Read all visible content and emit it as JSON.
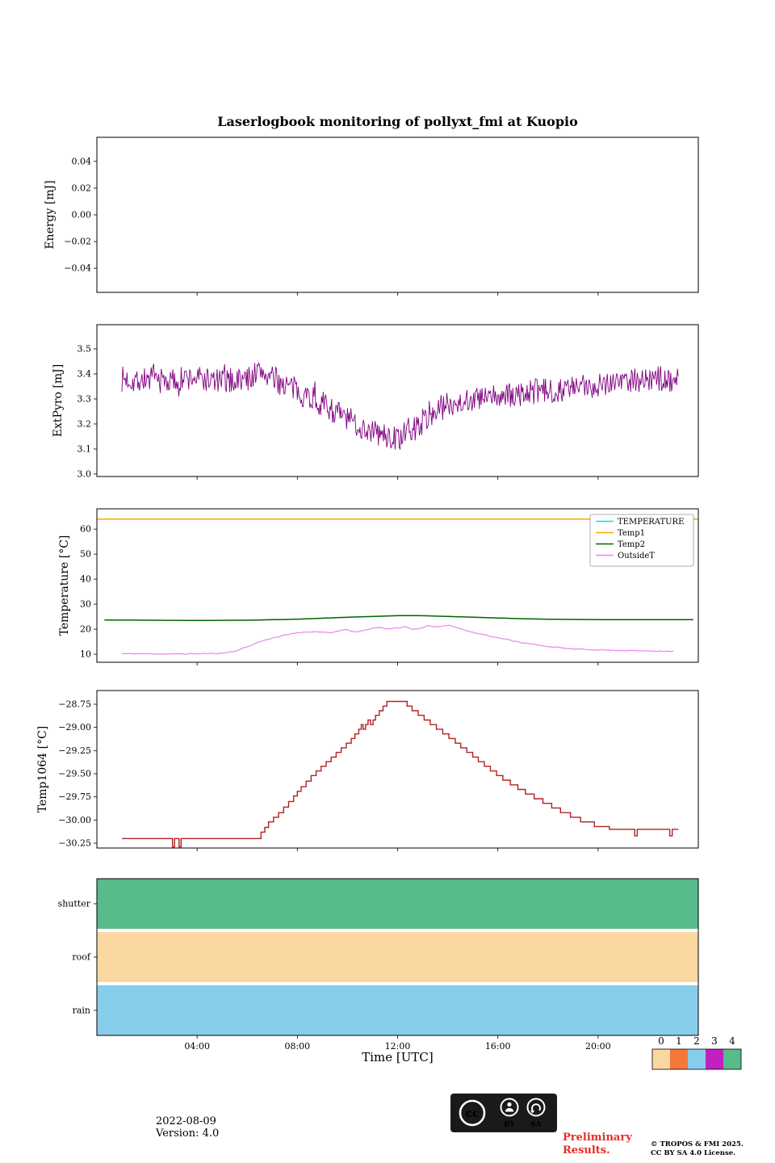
{
  "title": "Laserlogbook monitoring of pollyxt_fmi at Kuopio",
  "footer": {
    "date": "2022-08-09",
    "version": "Version: 4.0",
    "preliminary_line1": "Preliminary",
    "preliminary_line2": "Results.",
    "preliminary_color": "#e62e25",
    "copyright_line1": "© TROPOS & FMI 2025.",
    "copyright_line2": "CC BY SA 4.0 License.",
    "cc_logo_text": "cc",
    "cc_by_label": "BY",
    "cc_sa_label": "SA"
  },
  "colorbar": {
    "tick_labels": [
      "0",
      "1",
      "2",
      "3",
      "4"
    ],
    "colors": [
      "#fbd7a2",
      "#f4773b",
      "#87ceeb",
      "#c31fc3",
      "#57bb8a"
    ]
  },
  "chart_data": [
    {
      "id": "energy",
      "type": "line",
      "ylabel": "Energy [mJ]",
      "ylim": [
        -0.058,
        0.058
      ],
      "yticks": [
        0.04,
        0.02,
        0.0,
        -0.02,
        -0.04
      ],
      "ytick_labels": [
        "0.04",
        "0.02",
        "0.00",
        "−0.02",
        "−0.04"
      ],
      "xlim": [
        0,
        24
      ],
      "xticks": [
        4,
        8,
        12,
        16,
        20
      ],
      "series": []
    },
    {
      "id": "extpyro",
      "type": "line",
      "ylabel": "ExtPyro [mJ]",
      "ylim": [
        2.99,
        3.597
      ],
      "yticks": [
        3.0,
        3.1,
        3.2,
        3.3,
        3.4,
        3.5
      ],
      "ytick_labels": [
        "3.0",
        "3.1",
        "3.2",
        "3.3",
        "3.4",
        "3.5"
      ],
      "xlim": [
        0,
        24
      ],
      "xticks": [
        4,
        8,
        12,
        16,
        20
      ],
      "series": [
        {
          "name": "ExtPyro",
          "color": "#800080",
          "style": "line",
          "lw": 0.9,
          "pph": 30,
          "noise": 0.052,
          "spike_p": 0.02,
          "spike_mult": 1.9,
          "seed": 7,
          "trange": [
            1,
            23.2
          ],
          "anchors": [
            [
              1,
              3.38
            ],
            [
              1.5,
              3.375
            ],
            [
              2,
              3.38
            ],
            [
              2.5,
              3.375
            ],
            [
              3,
              3.37
            ],
            [
              3.5,
              3.38
            ],
            [
              4,
              3.385
            ],
            [
              4.5,
              3.375
            ],
            [
              5,
              3.37
            ],
            [
              5.5,
              3.375
            ],
            [
              6,
              3.38
            ],
            [
              6.3,
              3.4
            ],
            [
              6.6,
              3.41
            ],
            [
              7,
              3.38
            ],
            [
              7.5,
              3.36
            ],
            [
              8,
              3.33
            ],
            [
              8.5,
              3.31
            ],
            [
              9,
              3.28
            ],
            [
              9.5,
              3.25
            ],
            [
              10,
              3.22
            ],
            [
              10.5,
              3.19
            ],
            [
              11,
              3.17
            ],
            [
              11.5,
              3.15
            ],
            [
              12,
              3.14
            ],
            [
              12.5,
              3.17
            ],
            [
              13,
              3.21
            ],
            [
              13.5,
              3.25
            ],
            [
              14,
              3.28
            ],
            [
              14.5,
              3.29
            ],
            [
              15,
              3.3
            ],
            [
              15.5,
              3.3
            ],
            [
              16,
              3.31
            ],
            [
              16.5,
              3.31
            ],
            [
              17,
              3.32
            ],
            [
              17.5,
              3.33
            ],
            [
              18,
              3.33
            ],
            [
              18.5,
              3.34
            ],
            [
              19,
              3.34
            ],
            [
              19.5,
              3.35
            ],
            [
              20,
              3.36
            ],
            [
              20.5,
              3.37
            ],
            [
              21,
              3.375
            ],
            [
              21.5,
              3.38
            ],
            [
              22,
              3.375
            ],
            [
              22.5,
              3.38
            ],
            [
              23,
              3.38
            ],
            [
              23.2,
              3.38
            ]
          ]
        }
      ]
    },
    {
      "id": "temperature",
      "type": "line",
      "ylabel": "Temperature [°C]",
      "ylim": [
        6.8,
        68.1
      ],
      "yticks": [
        10,
        20,
        30,
        40,
        50,
        60
      ],
      "ytick_labels": [
        "10",
        "20",
        "30",
        "40",
        "50",
        "60"
      ],
      "xlim": [
        0,
        24
      ],
      "xticks": [
        4,
        8,
        12,
        16,
        20
      ],
      "legend": {
        "items": [
          {
            "label": "TEMPERATURE",
            "color": "#00e5e5"
          },
          {
            "label": "Temp1",
            "color": "#ffa500"
          },
          {
            "label": "Temp2",
            "color": "#006400"
          },
          {
            "label": "OutsideT",
            "color": "#ee82ee"
          }
        ]
      },
      "series": [
        {
          "name": "TEMPERATURE",
          "color": "#00e5e5",
          "style": "const",
          "value": 64,
          "trange": [
            0,
            24
          ],
          "lw": 1.5
        },
        {
          "name": "Temp1",
          "color": "#ffa500",
          "style": "const",
          "value": 64,
          "trange": [
            0,
            24
          ],
          "lw": 1.5
        },
        {
          "name": "Temp2",
          "color": "#006400",
          "style": "line",
          "lw": 1.5,
          "pph": 4,
          "trange": [
            0.3,
            23.9
          ],
          "anchors": [
            [
              0.3,
              23.7
            ],
            [
              2,
              23.6
            ],
            [
              4,
              23.5
            ],
            [
              6,
              23.6
            ],
            [
              7,
              23.8
            ],
            [
              8,
              24.0
            ],
            [
              9,
              24.4
            ],
            [
              10,
              24.8
            ],
            [
              11,
              25.1
            ],
            [
              12,
              25.4
            ],
            [
              13,
              25.4
            ],
            [
              14,
              25.1
            ],
            [
              15,
              24.8
            ],
            [
              16,
              24.5
            ],
            [
              17,
              24.2
            ],
            [
              18,
              24.0
            ],
            [
              19,
              23.9
            ],
            [
              20,
              23.85
            ],
            [
              21,
              23.8
            ],
            [
              22,
              23.8
            ],
            [
              23.9,
              23.8
            ]
          ]
        },
        {
          "name": "OutsideT",
          "color": "#ee82ee",
          "style": "line",
          "lw": 1.2,
          "pph": 12,
          "noise": 0.18,
          "seed": 11,
          "trange": [
            1,
            23.0
          ],
          "anchors": [
            [
              1,
              10.2
            ],
            [
              2,
              10.2
            ],
            [
              3,
              10.1
            ],
            [
              4,
              10.2
            ],
            [
              5,
              10.4
            ],
            [
              5.5,
              11.2
            ],
            [
              6,
              13.0
            ],
            [
              6.5,
              15.0
            ],
            [
              7,
              16.5
            ],
            [
              7.5,
              17.6
            ],
            [
              8,
              18.6
            ],
            [
              8.5,
              19.0
            ],
            [
              9,
              18.9
            ],
            [
              9.3,
              18.4
            ],
            [
              9.7,
              19.5
            ],
            [
              10,
              19.8
            ],
            [
              10.3,
              18.8
            ],
            [
              10.7,
              19.6
            ],
            [
              11,
              20.4
            ],
            [
              11.3,
              20.8
            ],
            [
              11.6,
              20.1
            ],
            [
              12,
              20.5
            ],
            [
              12.3,
              21.0
            ],
            [
              12.6,
              20.0
            ],
            [
              12.9,
              20.3
            ],
            [
              13.2,
              21.4
            ],
            [
              13.5,
              20.8
            ],
            [
              13.8,
              21.3
            ],
            [
              14.1,
              21.6
            ],
            [
              14.4,
              20.6
            ],
            [
              14.7,
              19.6
            ],
            [
              15,
              18.7
            ],
            [
              15.5,
              17.7
            ],
            [
              16,
              16.6
            ],
            [
              16.5,
              15.6
            ],
            [
              17,
              14.6
            ],
            [
              17.5,
              13.8
            ],
            [
              18,
              13.1
            ],
            [
              18.5,
              12.6
            ],
            [
              19,
              12.1
            ],
            [
              19.5,
              11.9
            ],
            [
              20,
              11.8
            ],
            [
              20.5,
              11.6
            ],
            [
              21,
              11.5
            ],
            [
              21.5,
              11.4
            ],
            [
              22,
              11.3
            ],
            [
              22.5,
              11.3
            ],
            [
              23,
              11.2
            ]
          ]
        }
      ]
    },
    {
      "id": "temp1064",
      "type": "line",
      "ylabel": "Temp1064 [°C]",
      "ylim": [
        -30.302,
        -28.602
      ],
      "yticks": [
        -28.75,
        -29.0,
        -29.25,
        -29.5,
        -29.75,
        -30.0,
        -30.25
      ],
      "ytick_labels": [
        "−28.75",
        "−29.00",
        "−29.25",
        "−29.50",
        "−29.75",
        "−30.00",
        "−30.25"
      ],
      "xlim": [
        0,
        24
      ],
      "xticks": [
        4,
        8,
        12,
        16,
        20
      ],
      "series": [
        {
          "name": "Temp1064",
          "color": "#b22222",
          "style": "step",
          "lw": 1.4,
          "points": [
            [
              1,
              -30.2
            ],
            [
              3.0,
              -30.2
            ],
            [
              3.02,
              -30.29
            ],
            [
              3.1,
              -30.2
            ],
            [
              3.28,
              -30.29
            ],
            [
              3.36,
              -30.2
            ],
            [
              6.4,
              -30.2
            ],
            [
              6.55,
              -30.13
            ],
            [
              6.7,
              -30.08
            ],
            [
              6.85,
              -30.02
            ],
            [
              7.05,
              -29.97
            ],
            [
              7.25,
              -29.92
            ],
            [
              7.45,
              -29.86
            ],
            [
              7.65,
              -29.8
            ],
            [
              7.85,
              -29.74
            ],
            [
              8.0,
              -29.69
            ],
            [
              8.15,
              -29.64
            ],
            [
              8.35,
              -29.58
            ],
            [
              8.55,
              -29.52
            ],
            [
              8.75,
              -29.47
            ],
            [
              8.95,
              -29.42
            ],
            [
              9.15,
              -29.37
            ],
            [
              9.35,
              -29.32
            ],
            [
              9.55,
              -29.27
            ],
            [
              9.75,
              -29.22
            ],
            [
              9.95,
              -29.17
            ],
            [
              10.15,
              -29.12
            ],
            [
              10.3,
              -29.07
            ],
            [
              10.45,
              -29.02
            ],
            [
              10.55,
              -28.97
            ],
            [
              10.62,
              -29.02
            ],
            [
              10.72,
              -28.97
            ],
            [
              10.82,
              -28.92
            ],
            [
              10.92,
              -28.97
            ],
            [
              11.02,
              -28.92
            ],
            [
              11.12,
              -28.87
            ],
            [
              11.27,
              -28.82
            ],
            [
              11.42,
              -28.77
            ],
            [
              11.57,
              -28.72
            ],
            [
              12.25,
              -28.72
            ],
            [
              12.38,
              -28.77
            ],
            [
              12.58,
              -28.82
            ],
            [
              12.82,
              -28.87
            ],
            [
              13.06,
              -28.92
            ],
            [
              13.3,
              -28.97
            ],
            [
              13.55,
              -29.02
            ],
            [
              13.8,
              -29.07
            ],
            [
              14.05,
              -29.12
            ],
            [
              14.3,
              -29.17
            ],
            [
              14.52,
              -29.22
            ],
            [
              14.76,
              -29.27
            ],
            [
              15.0,
              -29.32
            ],
            [
              15.22,
              -29.37
            ],
            [
              15.46,
              -29.42
            ],
            [
              15.7,
              -29.47
            ],
            [
              15.95,
              -29.52
            ],
            [
              16.2,
              -29.57
            ],
            [
              16.5,
              -29.62
            ],
            [
              16.8,
              -29.67
            ],
            [
              17.1,
              -29.72
            ],
            [
              17.45,
              -29.77
            ],
            [
              17.8,
              -29.82
            ],
            [
              18.15,
              -29.87
            ],
            [
              18.5,
              -29.92
            ],
            [
              18.9,
              -29.97
            ],
            [
              19.3,
              -30.02
            ],
            [
              19.85,
              -30.07
            ],
            [
              20.45,
              -30.1
            ],
            [
              21.4,
              -30.1
            ],
            [
              21.46,
              -30.17
            ],
            [
              21.56,
              -30.1
            ],
            [
              22.8,
              -30.1
            ],
            [
              22.86,
              -30.17
            ],
            [
              22.96,
              -30.1
            ],
            [
              23.2,
              -30.1
            ]
          ]
        }
      ]
    },
    {
      "id": "status",
      "type": "bands",
      "categories": [
        "shutter",
        "roof",
        "rain"
      ],
      "values": [
        4,
        0,
        2
      ],
      "band_colors": [
        "#57bb8a",
        "#fbd7a2",
        "#87ceeb"
      ],
      "xlim": [
        0,
        24
      ],
      "xticks": [
        4,
        8,
        12,
        16,
        20
      ],
      "xtick_labels": [
        "04:00",
        "08:00",
        "12:00",
        "16:00",
        "20:00"
      ],
      "xlabel": "Time [UTC]"
    }
  ]
}
